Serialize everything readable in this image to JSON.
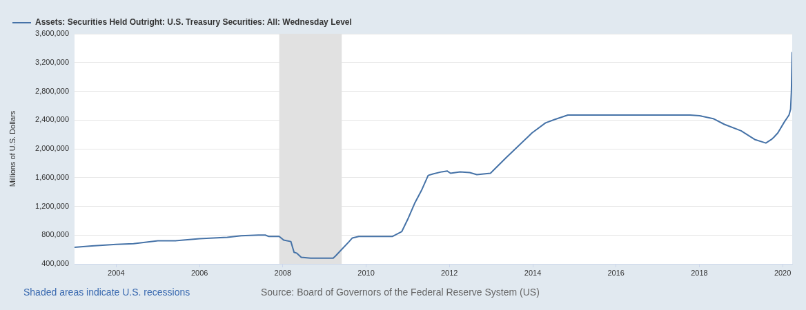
{
  "chart_data": {
    "type": "line",
    "ylabel": "Millions of U.S. Dollars",
    "annotations": [
      "Shaded areas indicate U.S. recessions",
      "Source: Board of Governors of the Federal Reserve System (US)"
    ],
    "x": [
      "2003-01-01",
      "2003-06-01",
      "2004-01-01",
      "2004-06-01",
      "2005-01-01",
      "2005-06-01",
      "2006-01-01",
      "2006-09-01",
      "2007-01-01",
      "2007-06-01",
      "2007-08-01",
      "2007-09-01",
      "2007-12-01",
      "2008-01-09",
      "2008-03-12",
      "2008-04-09",
      "2008-05-01",
      "2008-06-11",
      "2008-09-01",
      "2009-03-18",
      "2009-04-08",
      "2009-08-05",
      "2009-09-02",
      "2009-10-28",
      "2010-08-18",
      "2010-11-10",
      "2011-01-01",
      "2011-03-02",
      "2011-05-01",
      "2011-06-29",
      "2011-08-10",
      "2011-10-26",
      "2011-12-14",
      "2012-01-11",
      "2012-04-04",
      "2012-06-27",
      "2012-08-29",
      "2012-12-26",
      "2013-05-15",
      "2013-12-25",
      "2014-04-23",
      "2014-07-16",
      "2014-11-05",
      "2015-06-03",
      "2016-06-01",
      "2017-06-07",
      "2017-10-11",
      "2018-01-03",
      "2018-05-02",
      "2018-08-08",
      "2019-01-02",
      "2019-05-01",
      "2019-08-07",
      "2019-09-25",
      "2019-10-16",
      "2019-11-20",
      "2020-01-15",
      "2020-02-26",
      "2020-03-11",
      "2020-03-18",
      "2020-03-25"
    ],
    "series": [
      {
        "name": "Assets: Securities Held Outright: U.S. Treasury Securities: All: Wednesday Level",
        "color": "#4572a7",
        "values": [
          630000,
          650000,
          670000,
          680000,
          720000,
          720000,
          750000,
          770000,
          790000,
          800000,
          800000,
          780000,
          780000,
          730000,
          710000,
          560000,
          550000,
          490000,
          480000,
          480000,
          510000,
          710000,
          760000,
          780000,
          780000,
          850000,
          1020000,
          1240000,
          1420000,
          1630000,
          1650000,
          1680000,
          1690000,
          1660000,
          1680000,
          1670000,
          1640000,
          1660000,
          1880000,
          2220000,
          2360000,
          2410000,
          2470000,
          2470000,
          2470000,
          2470000,
          2470000,
          2460000,
          2420000,
          2340000,
          2250000,
          2130000,
          2080000,
          2130000,
          2160000,
          2220000,
          2370000,
          2470000,
          2550000,
          2800000,
          3340000
        ]
      }
    ],
    "xlim": [
      "2003-01-01",
      "2020-03-25"
    ],
    "xticks": [
      "2004",
      "2006",
      "2008",
      "2010",
      "2012",
      "2014",
      "2016",
      "2018",
      "2020"
    ],
    "ylim": [
      400000,
      3600000
    ],
    "yticks": [
      {
        "value": 400000,
        "label": "400,000"
      },
      {
        "value": 800000,
        "label": "800,000"
      },
      {
        "value": 1200000,
        "label": "1,200,000"
      },
      {
        "value": 1600000,
        "label": "1,600,000"
      },
      {
        "value": 2000000,
        "label": "2,000,000"
      },
      {
        "value": 2400000,
        "label": "2,400,000"
      },
      {
        "value": 2800000,
        "label": "2,800,000"
      },
      {
        "value": 3200000,
        "label": "3,200,000"
      },
      {
        "value": 3600000,
        "label": "3,600,000"
      }
    ],
    "bands": [
      {
        "axis": "x",
        "from": "2007-12-01",
        "to": "2009-06-01",
        "color": "#e1e1e1"
      }
    ],
    "grid": "y",
    "legend": "top left"
  }
}
